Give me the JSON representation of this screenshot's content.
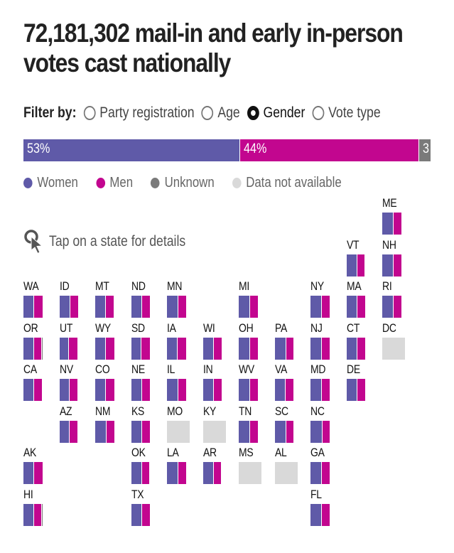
{
  "title": "72,181,302 mail-in and early in-person votes cast nationally",
  "filter": {
    "label": "Filter by:",
    "options": [
      {
        "label": "Party registration",
        "selected": false
      },
      {
        "label": "Age",
        "selected": false
      },
      {
        "label": "Gender",
        "selected": true
      },
      {
        "label": "Vote type",
        "selected": false
      }
    ]
  },
  "colors": {
    "women": "#5f5aa8",
    "men": "#c2068f",
    "unknown": "#7a7a7a",
    "not_available": "#d9d9d9"
  },
  "hint": {
    "icon": "tap-cursor-icon",
    "text": "Tap on a state for details"
  },
  "chart_data": {
    "type": "bar",
    "title": "72,181,302 mail-in and early in-person votes cast nationally",
    "national": {
      "categories": [
        "Women",
        "Men",
        "Unknown"
      ],
      "values": [
        53,
        44,
        3
      ],
      "labels": [
        "53%",
        "44%",
        "3"
      ]
    },
    "legend": [
      "Women",
      "Men",
      "Unknown",
      "Data not available"
    ],
    "legend_position": "top",
    "states": [
      {
        "code": "ME",
        "col": 10,
        "row": 0,
        "women": 54,
        "men": 46,
        "unknown": 0
      },
      {
        "code": "VT",
        "col": 9,
        "row": 1,
        "women": 53,
        "men": 43,
        "unknown": 4
      },
      {
        "code": "NH",
        "col": 10,
        "row": 1,
        "women": 54,
        "men": 46,
        "unknown": 0
      },
      {
        "code": "WA",
        "col": 0,
        "row": 2,
        "women": 53,
        "men": 47,
        "unknown": 0
      },
      {
        "code": "ID",
        "col": 1,
        "row": 2,
        "women": 53,
        "men": 47,
        "unknown": 0
      },
      {
        "code": "MT",
        "col": 2,
        "row": 2,
        "women": 52,
        "men": 45,
        "unknown": 3
      },
      {
        "code": "ND",
        "col": 3,
        "row": 2,
        "women": 52,
        "men": 48,
        "unknown": 0
      },
      {
        "code": "MN",
        "col": 4,
        "row": 2,
        "women": 54,
        "men": 46,
        "unknown": 0
      },
      {
        "code": "MI",
        "col": 6,
        "row": 2,
        "women": 56,
        "men": 44,
        "unknown": 0
      },
      {
        "code": "NY",
        "col": 8,
        "row": 2,
        "women": 56,
        "men": 44,
        "unknown": 0
      },
      {
        "code": "MA",
        "col": 9,
        "row": 2,
        "women": 55,
        "men": 45,
        "unknown": 0
      },
      {
        "code": "RI",
        "col": 10,
        "row": 2,
        "women": 56,
        "men": 44,
        "unknown": 0
      },
      {
        "code": "OR",
        "col": 0,
        "row": 3,
        "women": 50,
        "men": 44,
        "unknown": 6
      },
      {
        "code": "UT",
        "col": 1,
        "row": 3,
        "women": 48,
        "men": 45,
        "unknown": 7
      },
      {
        "code": "WY",
        "col": 2,
        "row": 3,
        "women": 52,
        "men": 48,
        "unknown": 0
      },
      {
        "code": "SD",
        "col": 3,
        "row": 3,
        "women": 51,
        "men": 49,
        "unknown": 0
      },
      {
        "code": "IA",
        "col": 4,
        "row": 3,
        "women": 53,
        "men": 47,
        "unknown": 0
      },
      {
        "code": "WI",
        "col": 5,
        "row": 3,
        "women": 54,
        "men": 46,
        "unknown": 0
      },
      {
        "code": "OH",
        "col": 6,
        "row": 3,
        "women": 54,
        "men": 46,
        "unknown": 0
      },
      {
        "code": "PA",
        "col": 7,
        "row": 3,
        "women": 56,
        "men": 44,
        "unknown": 0
      },
      {
        "code": "NJ",
        "col": 8,
        "row": 3,
        "women": 56,
        "men": 44,
        "unknown": 0
      },
      {
        "code": "CT",
        "col": 9,
        "row": 3,
        "women": 55,
        "men": 45,
        "unknown": 0
      },
      {
        "code": "DC",
        "col": 10,
        "row": 3,
        "women": null,
        "men": null,
        "unknown": null,
        "not_available": true
      },
      {
        "code": "CA",
        "col": 0,
        "row": 4,
        "women": 51,
        "men": 44,
        "unknown": 5
      },
      {
        "code": "NV",
        "col": 1,
        "row": 4,
        "women": 50,
        "men": 45,
        "unknown": 5
      },
      {
        "code": "CO",
        "col": 2,
        "row": 4,
        "women": 53,
        "men": 47,
        "unknown": 0
      },
      {
        "code": "NE",
        "col": 3,
        "row": 4,
        "women": 53,
        "men": 47,
        "unknown": 0
      },
      {
        "code": "IL",
        "col": 4,
        "row": 4,
        "women": 55,
        "men": 45,
        "unknown": 0
      },
      {
        "code": "IN",
        "col": 5,
        "row": 4,
        "women": 55,
        "men": 45,
        "unknown": 0
      },
      {
        "code": "WV",
        "col": 6,
        "row": 4,
        "women": 54,
        "men": 46,
        "unknown": 0
      },
      {
        "code": "VA",
        "col": 7,
        "row": 4,
        "women": 55,
        "men": 45,
        "unknown": 0
      },
      {
        "code": "MD",
        "col": 8,
        "row": 4,
        "women": 55,
        "men": 45,
        "unknown": 0
      },
      {
        "code": "DE",
        "col": 9,
        "row": 4,
        "women": 55,
        "men": 42,
        "unknown": 3
      },
      {
        "code": "AZ",
        "col": 1,
        "row": 5,
        "women": 51,
        "men": 44,
        "unknown": 5
      },
      {
        "code": "NM",
        "col": 2,
        "row": 5,
        "women": 54,
        "men": 46,
        "unknown": 0
      },
      {
        "code": "KS",
        "col": 3,
        "row": 5,
        "women": 55,
        "men": 45,
        "unknown": 0
      },
      {
        "code": "MO",
        "col": 4,
        "row": 5,
        "women": null,
        "men": null,
        "unknown": null,
        "not_available": true
      },
      {
        "code": "KY",
        "col": 5,
        "row": 5,
        "women": null,
        "men": null,
        "unknown": null,
        "not_available": true
      },
      {
        "code": "TN",
        "col": 6,
        "row": 5,
        "women": 55,
        "men": 45,
        "unknown": 0
      },
      {
        "code": "SC",
        "col": 7,
        "row": 5,
        "women": 57,
        "men": 43,
        "unknown": 0
      },
      {
        "code": "NC",
        "col": 8,
        "row": 5,
        "women": 58,
        "men": 42,
        "unknown": 0
      },
      {
        "code": "AK",
        "col": 0,
        "row": 6,
        "women": 52,
        "men": 48,
        "unknown": 0
      },
      {
        "code": "OK",
        "col": 3,
        "row": 6,
        "women": 53,
        "men": 43,
        "unknown": 4
      },
      {
        "code": "LA",
        "col": 4,
        "row": 6,
        "women": 56,
        "men": 44,
        "unknown": 0
      },
      {
        "code": "AR",
        "col": 5,
        "row": 6,
        "women": 55,
        "men": 41,
        "unknown": 4
      },
      {
        "code": "MS",
        "col": 6,
        "row": 6,
        "women": null,
        "men": null,
        "unknown": null,
        "not_available": true
      },
      {
        "code": "AL",
        "col": 7,
        "row": 6,
        "women": null,
        "men": null,
        "unknown": null,
        "not_available": true
      },
      {
        "code": "GA",
        "col": 8,
        "row": 6,
        "women": 56,
        "men": 44,
        "unknown": 0
      },
      {
        "code": "HI",
        "col": 0,
        "row": 7,
        "women": 50,
        "men": 44,
        "unknown": 6
      },
      {
        "code": "TX",
        "col": 3,
        "row": 7,
        "women": 52,
        "men": 48,
        "unknown": 0
      },
      {
        "code": "FL",
        "col": 8,
        "row": 7,
        "women": 55,
        "men": 45,
        "unknown": 0
      }
    ]
  }
}
